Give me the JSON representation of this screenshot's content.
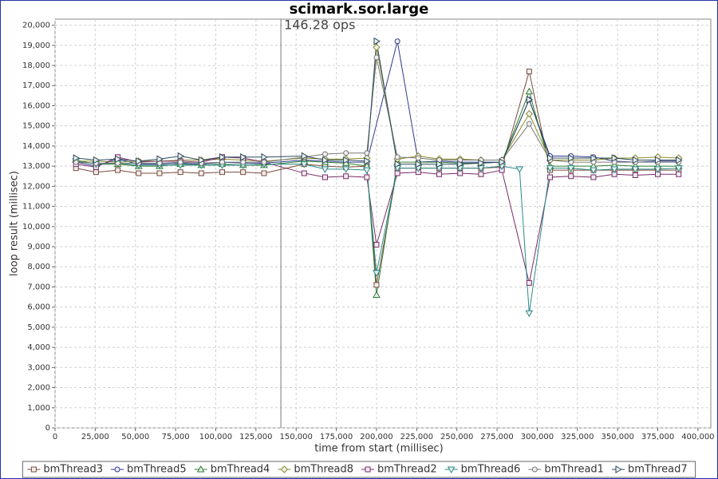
{
  "chart_data": {
    "type": "line",
    "title": "scimark.sor.large",
    "x_label": "time from start (millisec)",
    "y_label": "loop result (millisec)",
    "marker": {
      "value": 140500,
      "label": "146.28 ops"
    },
    "xlim": [
      0,
      408000
    ],
    "ylim": [
      0,
      20300
    ],
    "grid": true,
    "legend": "bottom",
    "xticks": [
      0,
      {
        "value": 25000,
        "label": "25,000"
      },
      {
        "value": 50000,
        "label": "50,000"
      },
      {
        "value": 75000,
        "label": "75,000"
      },
      {
        "value": 100000,
        "label": "100,000"
      },
      {
        "value": 125000,
        "label": "125,000"
      },
      {
        "value": 150000,
        "label": "150,000"
      },
      {
        "value": 175000,
        "label": "175,000"
      },
      {
        "value": 200000,
        "label": "200,000"
      },
      {
        "value": 225000,
        "label": "225,000"
      },
      {
        "value": 250000,
        "label": "250,000"
      },
      {
        "value": 275000,
        "label": "275,000"
      },
      {
        "value": 300000,
        "label": "300,000"
      },
      {
        "value": 325000,
        "label": "325,000"
      },
      {
        "value": 350000,
        "label": "350,000"
      },
      {
        "value": 375000,
        "label": "375,000"
      },
      {
        "value": 400000,
        "label": "400,000"
      }
    ],
    "yticks": [
      0,
      {
        "value": 1000,
        "label": "1,000"
      },
      {
        "value": 2000,
        "label": "2,000"
      },
      {
        "value": 3000,
        "label": "3,000"
      },
      {
        "value": 4000,
        "label": "4,000"
      },
      {
        "value": 5000,
        "label": "5,000"
      },
      {
        "value": 6000,
        "label": "6,000"
      },
      {
        "value": 7000,
        "label": "7,000"
      },
      {
        "value": 8000,
        "label": "8,000"
      },
      {
        "value": 9000,
        "label": "9,000"
      },
      {
        "value": 10000,
        "label": "10,000"
      },
      {
        "value": 11000,
        "label": "11,000"
      },
      {
        "value": 12000,
        "label": "12,000"
      },
      {
        "value": 13000,
        "label": "13,000"
      },
      {
        "value": 14000,
        "label": "14,000"
      },
      {
        "value": 15000,
        "label": "15,000"
      },
      {
        "value": 16000,
        "label": "16,000"
      },
      {
        "value": 17000,
        "label": "17,000"
      },
      {
        "value": 18000,
        "label": "18,000"
      },
      {
        "value": 19000,
        "label": "19,000"
      },
      {
        "value": 20000,
        "label": "20,000"
      }
    ],
    "series": [
      {
        "name": "bmThread3",
        "color": "#7a4a3a",
        "shape": "square",
        "x": [
          13000,
          25500,
          39000,
          52000,
          65000,
          78000,
          91000,
          104000,
          117000,
          130000,
          155000,
          168000,
          181000,
          194000,
          200000,
          213000,
          226000,
          239000,
          252000,
          265000,
          278000,
          295000,
          308000,
          321000,
          335000,
          348000,
          361000,
          375000,
          388000
        ],
        "values": [
          12900,
          12700,
          12800,
          12650,
          12650,
          12700,
          12650,
          12700,
          12700,
          12650,
          13100,
          13000,
          12950,
          13000,
          7100,
          12900,
          12900,
          12900,
          12900,
          12900,
          12950,
          17700,
          12800,
          12800,
          12800,
          12800,
          12800,
          12800,
          12800
        ]
      },
      {
        "name": "bmThread5",
        "color": "#2f3a8f",
        "shape": "circle",
        "x": [
          13000,
          25500,
          39000,
          52000,
          65000,
          78000,
          91000,
          104000,
          117000,
          130000,
          155000,
          168000,
          181000,
          194000,
          213000,
          226000,
          239000,
          252000,
          265000,
          278000,
          295000,
          308000,
          321000,
          335000,
          348000,
          361000,
          375000,
          388000
        ],
        "values": [
          13200,
          13000,
          13350,
          13100,
          13100,
          13150,
          13100,
          13200,
          13150,
          13150,
          13300,
          13250,
          13200,
          13200,
          19200,
          13200,
          13250,
          13200,
          13200,
          13200,
          16300,
          13500,
          13500,
          13450,
          13250,
          13200,
          13250,
          13250
        ]
      },
      {
        "name": "bmThread4",
        "color": "#2e7d32",
        "shape": "triangle-up",
        "x": [
          13000,
          25500,
          39000,
          52000,
          65000,
          78000,
          91000,
          104000,
          117000,
          130000,
          155000,
          168000,
          181000,
          194000,
          200000,
          213000,
          226000,
          239000,
          252000,
          265000,
          278000,
          295000,
          308000,
          321000,
          335000,
          348000,
          361000,
          375000,
          388000
        ],
        "values": [
          13300,
          13100,
          13100,
          13000,
          13000,
          13100,
          13050,
          13100,
          13050,
          13050,
          13250,
          13200,
          13150,
          13000,
          6600,
          13200,
          13200,
          13200,
          13150,
          13150,
          13200,
          16700,
          13000,
          13000,
          13000,
          13050,
          13000,
          13000,
          13000
        ]
      },
      {
        "name": "bmThread8",
        "color": "#8a8a2a",
        "shape": "diamond",
        "x": [
          13000,
          25500,
          39000,
          52000,
          65000,
          78000,
          91000,
          104000,
          117000,
          130000,
          155000,
          168000,
          181000,
          194000,
          200000,
          213000,
          226000,
          239000,
          252000,
          265000,
          278000,
          295000,
          308000,
          321000,
          335000,
          348000,
          361000,
          375000,
          388000
        ],
        "values": [
          13250,
          13250,
          13200,
          13250,
          13250,
          13300,
          13300,
          13350,
          13300,
          13250,
          13400,
          13350,
          13350,
          13400,
          18900,
          13350,
          13500,
          13350,
          13350,
          13300,
          13300,
          15600,
          13300,
          13300,
          13300,
          13400,
          13400,
          13450,
          13400
        ]
      },
      {
        "name": "bmThread2",
        "color": "#7a2a6a",
        "shape": "square",
        "x": [
          13000,
          25500,
          39000,
          52000,
          65000,
          78000,
          91000,
          104000,
          117000,
          130000,
          155000,
          168000,
          181000,
          194000,
          200000,
          213000,
          226000,
          239000,
          252000,
          265000,
          278000,
          295000,
          308000,
          321000,
          335000,
          348000,
          361000,
          375000,
          388000
        ],
        "values": [
          13100,
          12950,
          13450,
          13200,
          13250,
          13250,
          13200,
          13450,
          13400,
          13200,
          12650,
          12450,
          12500,
          12450,
          9100,
          12650,
          12700,
          12600,
          12650,
          12600,
          12800,
          7200,
          12450,
          12500,
          12450,
          12600,
          12550,
          12600,
          12600
        ]
      },
      {
        "name": "bmThread6",
        "color": "#2a8a8a",
        "shape": "triangle-down",
        "x": [
          13000,
          25500,
          39000,
          52000,
          65000,
          78000,
          91000,
          104000,
          117000,
          130000,
          155000,
          168000,
          181000,
          194000,
          200000,
          213000,
          226000,
          239000,
          252000,
          265000,
          278000,
          289000,
          295000,
          308000,
          321000,
          335000,
          348000,
          361000,
          375000,
          388000
        ],
        "values": [
          13250,
          13100,
          13150,
          13050,
          13050,
          13050,
          13050,
          13050,
          13050,
          13100,
          13100,
          12850,
          12850,
          12800,
          7700,
          12900,
          12900,
          12900,
          12900,
          12900,
          13000,
          12850,
          5700,
          12900,
          12900,
          12800,
          12850,
          12850,
          12850,
          12900
        ]
      },
      {
        "name": "bmThread1",
        "color": "#777777",
        "shape": "circle",
        "x": [
          13000,
          25500,
          39000,
          52000,
          65000,
          78000,
          91000,
          104000,
          117000,
          130000,
          155000,
          168000,
          181000,
          194000,
          200000,
          213000,
          226000,
          239000,
          252000,
          265000,
          278000,
          295000,
          308000,
          321000,
          335000,
          348000,
          361000,
          375000,
          388000
        ],
        "values": [
          13200,
          13150,
          13150,
          13150,
          13150,
          13200,
          13150,
          13200,
          13200,
          13200,
          13450,
          13600,
          13650,
          13650,
          18400,
          13450,
          13400,
          13300,
          13300,
          13300,
          13300,
          15100,
          13300,
          13200,
          13200,
          13200,
          13200,
          13200,
          13200
        ]
      },
      {
        "name": "bmThread7",
        "color": "#2a4a5a",
        "shape": "triangle-right",
        "x": [
          13000,
          25500,
          39000,
          52000,
          65000,
          78000,
          91000,
          104000,
          117000,
          130000,
          155000,
          168000,
          181000,
          194000,
          200000,
          213000,
          226000,
          239000,
          252000,
          265000,
          278000,
          295000,
          308000,
          321000,
          335000,
          348000,
          361000,
          375000,
          388000
        ],
        "values": [
          13400,
          13300,
          13350,
          13250,
          13350,
          13500,
          13300,
          13450,
          13450,
          13450,
          13500,
          13300,
          13300,
          13250,
          19200,
          13100,
          13100,
          13100,
          13100,
          13150,
          13200,
          16300,
          13400,
          13400,
          13400,
          13400,
          13300,
          13300,
          13300
        ]
      }
    ]
  }
}
